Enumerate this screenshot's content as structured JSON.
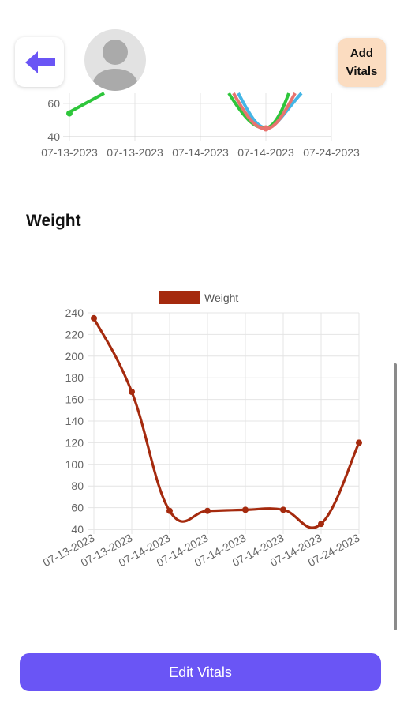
{
  "header": {
    "add_button_line1": "Add",
    "add_button_line2": "Vitals",
    "icons": {
      "back": "arrow-left-icon",
      "avatar": "user-avatar-placeholder"
    }
  },
  "weight_section": {
    "title": "Weight"
  },
  "footer": {
    "edit_button_label": "Edit Vitals"
  },
  "colors": {
    "accent": "#6a55f5",
    "add_button_bg": "#fbdcc0",
    "weight_line": "#a52a0e",
    "top_green": "#2ec63b",
    "top_red": "#e8736f",
    "top_blue": "#44b6e6"
  },
  "chart_data": [
    {
      "type": "line",
      "x": [
        "07-13-2023",
        "07-13-2023",
        "07-14-2023",
        "07-14-2023",
        "07-24-2023"
      ],
      "y_ticks_visible": [
        40,
        60
      ],
      "grid": true,
      "note_visible_markers": [
        {
          "x": "07-13-2023",
          "y": 54,
          "series_color": "green"
        },
        {
          "x": "07-14-2023",
          "y": 45,
          "series_color": "red"
        }
      ]
    },
    {
      "type": "line",
      "legend": "top-center",
      "series": [
        {
          "name": "Weight",
          "values": [
            235,
            167,
            57,
            57,
            58,
            58,
            45,
            120
          ]
        }
      ],
      "categories": [
        "07-13-2023",
        "07-13-2023",
        "07-14-2023",
        "07-14-2023",
        "07-14-2023",
        "07-14-2023",
        "07-14-2023",
        "07-24-2023"
      ],
      "ylim": [
        40,
        240
      ],
      "y_ticks": [
        40,
        60,
        80,
        100,
        120,
        140,
        160,
        180,
        200,
        220,
        240
      ],
      "grid": true
    }
  ]
}
